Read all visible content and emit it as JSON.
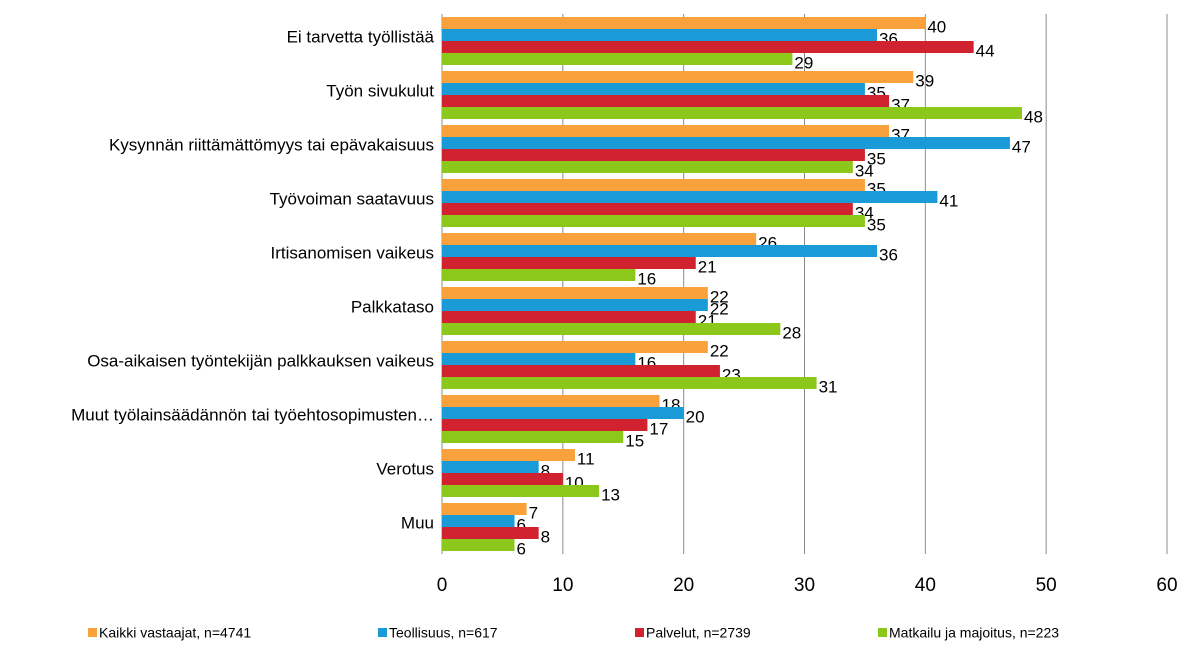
{
  "chart_data": {
    "type": "bar",
    "orientation": "horizontal",
    "categories": [
      "Ei tarvetta työllistää",
      "Työn sivukulut",
      "Kysynnän riittämättömyys tai epävakaisuus",
      "Työvoiman saatavuus",
      "Irtisanomisen vaikeus",
      "Palkkataso",
      "Osa-aikaisen työntekijän palkkauksen vaikeus",
      "Muut työlainsäädännön tai työehtosopimusten…",
      "Verotus",
      "Muu"
    ],
    "series": [
      {
        "name": "Kaikki vastaajat, n=4741",
        "color": "#f9a13a",
        "values": [
          40,
          39,
          37,
          35,
          26,
          22,
          22,
          18,
          11,
          7
        ]
      },
      {
        "name": "Teollisuus, n=617",
        "color": "#1a9ad7",
        "values": [
          36,
          35,
          47,
          41,
          36,
          22,
          16,
          20,
          8,
          6
        ]
      },
      {
        "name": "Palvelut, n=2739",
        "color": "#d1222f",
        "values": [
          44,
          37,
          35,
          34,
          21,
          21,
          23,
          17,
          10,
          8
        ]
      },
      {
        "name": "Matkailu ja majoitus, n=223",
        "color": "#8cc81c",
        "values": [
          29,
          48,
          34,
          35,
          16,
          28,
          31,
          15,
          13,
          6
        ]
      }
    ],
    "xlim": [
      0,
      60
    ],
    "xticks": [
      0,
      10,
      20,
      30,
      40,
      50,
      60
    ],
    "grid": true,
    "legend": "bottom"
  }
}
